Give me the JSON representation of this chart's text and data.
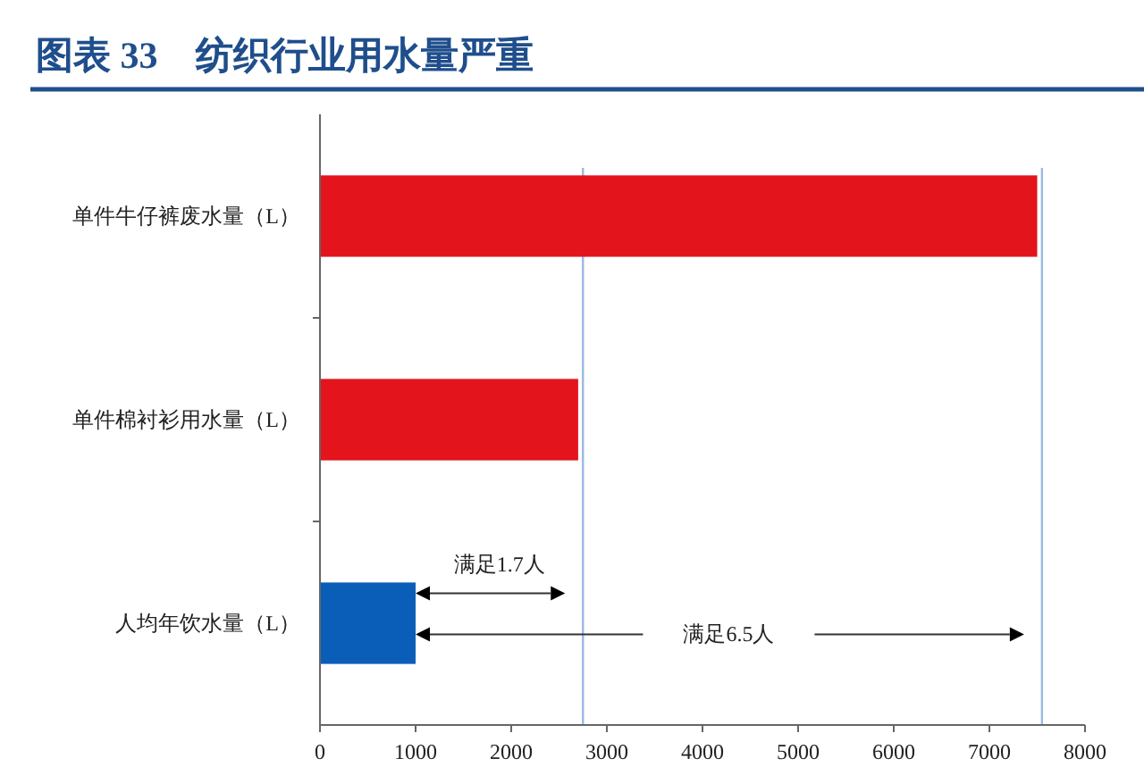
{
  "chart_data": {
    "type": "bar",
    "orientation": "horizontal",
    "title": "图表 33　纺织行业用水量严重",
    "categories": [
      "单件牛仔裤废水量（L）",
      "单件棉衬衫用水量（L）",
      "人均年饮水量（L）"
    ],
    "values": [
      7500,
      2700,
      1000
    ],
    "colors": [
      "#e3141c",
      "#e3141c",
      "#0a5eb8"
    ],
    "xlim": [
      0,
      8000
    ],
    "xticks": [
      0,
      1000,
      2000,
      3000,
      4000,
      5000,
      6000,
      7000,
      8000
    ],
    "ref_lines": [
      {
        "axis": "x",
        "value": 2750,
        "color": "#9bb8e0"
      },
      {
        "axis": "x",
        "value": 7550,
        "color": "#9bb8e0"
      }
    ],
    "annotations": [
      "满足1.7人",
      "满足6.5人"
    ]
  }
}
